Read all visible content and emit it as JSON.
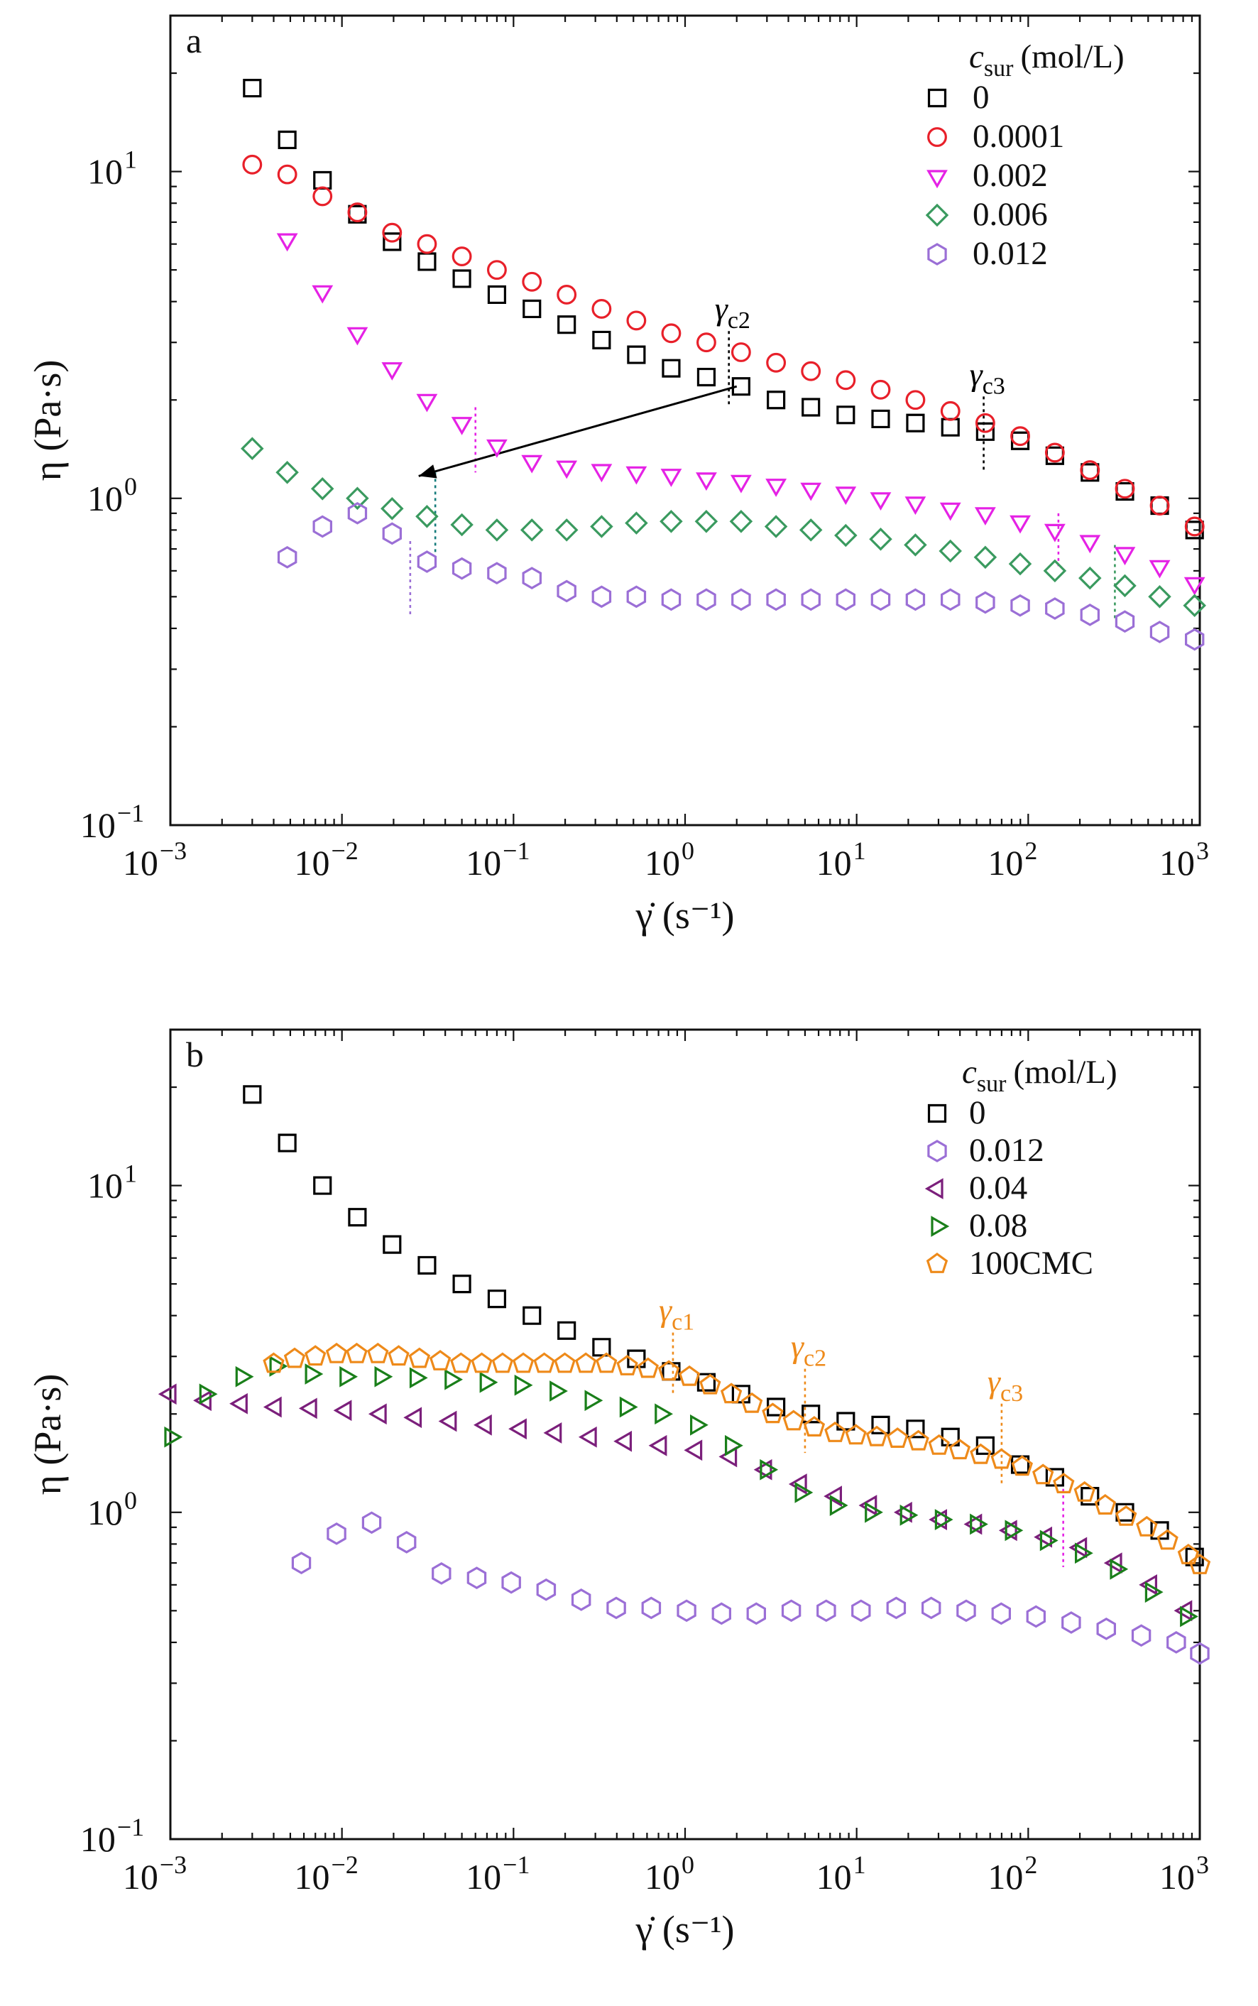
{
  "chart_data": [
    {
      "type": "scatter",
      "panel_label": "a",
      "xlabel": "γ̇ (s⁻¹)",
      "ylabel": "η (Pa·s)",
      "xscale": "log",
      "yscale": "log",
      "xlim": [
        0.001,
        1000
      ],
      "ylim": [
        0.1,
        30
      ],
      "legend_title": "c_sur (mol/L)",
      "legend_title_main": "c",
      "legend_title_sub": "sur",
      "legend_title_rest": "(mol/L)",
      "legend_position": "top-right",
      "x": [
        0.003,
        0.0048,
        0.0077,
        0.0123,
        0.0196,
        0.0313,
        0.05,
        0.08,
        0.128,
        0.204,
        0.326,
        0.52,
        0.83,
        1.33,
        2.12,
        3.39,
        5.41,
        8.64,
        13.8,
        22.0,
        35.2,
        56.2,
        89.8,
        143,
        229,
        366,
        584,
        933
      ],
      "series": [
        {
          "name": "0",
          "marker": "square",
          "color": "#000000",
          "values": [
            18.0,
            12.5,
            9.4,
            7.4,
            6.1,
            5.3,
            4.7,
            4.2,
            3.8,
            3.4,
            3.05,
            2.75,
            2.5,
            2.35,
            2.2,
            2.0,
            1.9,
            1.8,
            1.75,
            1.7,
            1.65,
            1.6,
            1.5,
            1.35,
            1.2,
            1.05,
            0.95,
            0.8
          ]
        },
        {
          "name": "0.0001",
          "marker": "circle",
          "color": "#e8202a",
          "values": [
            10.5,
            9.8,
            8.4,
            7.5,
            6.5,
            6.0,
            5.5,
            5.0,
            4.6,
            4.2,
            3.8,
            3.5,
            3.2,
            3.0,
            2.8,
            2.6,
            2.45,
            2.3,
            2.15,
            2.0,
            1.85,
            1.7,
            1.55,
            1.38,
            1.22,
            1.07,
            0.95,
            0.82
          ]
        },
        {
          "name": "0.002",
          "marker": "triangle-down",
          "color": "#e522e5",
          "values": [
            null,
            6.2,
            4.3,
            3.2,
            2.5,
            2.0,
            1.7,
            1.45,
            1.3,
            1.25,
            1.22,
            1.2,
            1.18,
            1.15,
            1.13,
            1.1,
            1.07,
            1.04,
            1.0,
            0.97,
            0.93,
            0.9,
            0.85,
            0.8,
            0.74,
            0.68,
            0.62,
            0.55
          ]
        },
        {
          "name": "0.006",
          "marker": "diamond",
          "color": "#3a9a5f",
          "values": [
            1.42,
            1.2,
            1.07,
            1.0,
            0.93,
            0.88,
            0.83,
            0.8,
            0.8,
            0.8,
            0.82,
            0.84,
            0.85,
            0.85,
            0.85,
            0.82,
            0.8,
            0.77,
            0.75,
            0.72,
            0.69,
            0.66,
            0.63,
            0.6,
            0.57,
            0.54,
            0.5,
            0.47
          ]
        },
        {
          "name": "0.012",
          "marker": "hexagon",
          "color": "#9b6fd6",
          "values": [
            null,
            0.66,
            0.82,
            0.9,
            0.78,
            0.64,
            0.61,
            0.59,
            0.57,
            0.52,
            0.5,
            0.5,
            0.49,
            0.49,
            0.49,
            0.49,
            0.49,
            0.49,
            0.49,
            0.49,
            0.49,
            0.48,
            0.47,
            0.46,
            0.44,
            0.42,
            0.39,
            0.37
          ]
        }
      ],
      "annotations": [
        {
          "text": "γc2",
          "main": "γ",
          "sub": "c2",
          "x": 1.8,
          "line_top": 3.25,
          "line_bottom": 1.9,
          "color": "#000000"
        },
        {
          "text": "γc3",
          "main": "γ",
          "sub": "c3",
          "x": 55,
          "line_top": 2.05,
          "line_bottom": 1.2,
          "color": "#000000"
        }
      ],
      "arrow": {
        "from": [
          2.0,
          2.2
        ],
        "to": [
          0.028,
          1.17
        ],
        "color": "#000000"
      },
      "markers_v": [
        {
          "x": 0.06,
          "top": 1.9,
          "bottom": 1.2,
          "color": "#e522e5"
        },
        {
          "x": 0.035,
          "top": 1.2,
          "bottom": 0.68,
          "color": "#167c7c"
        },
        {
          "x": 0.025,
          "top": 0.74,
          "bottom": 0.44,
          "color": "#9b6fd6"
        },
        {
          "x": 150,
          "top": 0.9,
          "bottom": 0.62,
          "color": "#e522e5"
        },
        {
          "x": 320,
          "top": 0.72,
          "bottom": 0.42,
          "color": "#3a9a5f"
        }
      ]
    },
    {
      "type": "scatter",
      "panel_label": "b",
      "xlabel": "γ̇ (s⁻¹)",
      "ylabel": "η (Pa·s)",
      "xscale": "log",
      "yscale": "log",
      "xlim": [
        0.001,
        1000
      ],
      "ylim": [
        0.1,
        30
      ],
      "legend_title": "c_sur (mol/L)",
      "legend_title_main": "c",
      "legend_title_sub": "sur",
      "legend_title_rest": "(mol/L)",
      "legend_position": "top-right",
      "series": [
        {
          "name": "0",
          "marker": "square",
          "color": "#000000",
          "x": [
            0.003,
            0.0048,
            0.0077,
            0.0123,
            0.0196,
            0.0313,
            0.05,
            0.08,
            0.128,
            0.204,
            0.326,
            0.52,
            0.83,
            1.33,
            2.12,
            3.39,
            5.41,
            8.64,
            13.8,
            22.0,
            35.2,
            56.2,
            89.8,
            143,
            229,
            366,
            584,
            933
          ],
          "values": [
            19.0,
            13.5,
            10.0,
            8.0,
            6.6,
            5.7,
            5.0,
            4.5,
            4.0,
            3.6,
            3.2,
            2.95,
            2.7,
            2.5,
            2.3,
            2.1,
            2.0,
            1.9,
            1.85,
            1.8,
            1.7,
            1.6,
            1.4,
            1.28,
            1.12,
            1.0,
            0.88,
            0.73
          ]
        },
        {
          "name": "0.012",
          "marker": "hexagon",
          "color": "#9b6fd6",
          "x": [
            0.0058,
            0.0093,
            0.0149,
            0.0238,
            0.038,
            0.061,
            0.097,
            0.155,
            0.248,
            0.397,
            0.635,
            1.02,
            1.63,
            2.6,
            4.16,
            6.65,
            10.6,
            17.0,
            27.2,
            43.5,
            69.6,
            111,
            178,
            285,
            456,
            729,
            1000
          ],
          "values": [
            0.7,
            0.86,
            0.93,
            0.81,
            0.65,
            0.63,
            0.61,
            0.58,
            0.54,
            0.51,
            0.51,
            0.5,
            0.49,
            0.49,
            0.5,
            0.5,
            0.5,
            0.51,
            0.51,
            0.5,
            0.49,
            0.48,
            0.46,
            0.44,
            0.42,
            0.4,
            0.37
          ]
        },
        {
          "name": "0.04",
          "marker": "triangle-left",
          "color": "#7b1f7b",
          "x": [
            0.001,
            0.0016,
            0.0026,
            0.0041,
            0.0066,
            0.0105,
            0.0168,
            0.0269,
            0.043,
            0.0689,
            0.11,
            0.176,
            0.282,
            0.451,
            0.722,
            1.16,
            1.85,
            2.96,
            4.73,
            7.57,
            12.1,
            19.4,
            31.0,
            49.6,
            79.4,
            127,
            203,
            325,
            520,
            832
          ],
          "values": [
            2.3,
            2.2,
            2.15,
            2.1,
            2.08,
            2.05,
            2.0,
            1.95,
            1.9,
            1.85,
            1.8,
            1.75,
            1.7,
            1.65,
            1.6,
            1.55,
            1.48,
            1.35,
            1.22,
            1.12,
            1.05,
            1.0,
            0.95,
            0.92,
            0.88,
            0.84,
            0.78,
            0.7,
            0.6,
            0.5
          ]
        },
        {
          "name": "0.08",
          "marker": "triangle-right",
          "color": "#1a7f1a",
          "x": [
            0.001,
            0.0016,
            0.0026,
            0.0041,
            0.0066,
            0.0105,
            0.0168,
            0.0269,
            0.043,
            0.0689,
            0.11,
            0.176,
            0.282,
            0.451,
            0.722,
            1.16,
            1.85,
            2.96,
            4.73,
            7.57,
            12.1,
            19.4,
            31.0,
            49.6,
            79.4,
            127,
            203,
            325,
            520,
            832
          ],
          "values": [
            1.7,
            2.3,
            2.6,
            2.8,
            2.65,
            2.6,
            2.6,
            2.58,
            2.55,
            2.5,
            2.45,
            2.35,
            2.2,
            2.1,
            2.0,
            1.85,
            1.6,
            1.35,
            1.15,
            1.05,
            1.0,
            0.98,
            0.95,
            0.92,
            0.88,
            0.82,
            0.75,
            0.67,
            0.57,
            0.48
          ]
        },
        {
          "name": "100CMC",
          "marker": "pentagon",
          "color": "#ee8a1a",
          "x": [
            0.004,
            0.0053,
            0.007,
            0.0093,
            0.0122,
            0.0162,
            0.0214,
            0.0283,
            0.0374,
            0.0494,
            0.0653,
            0.0863,
            0.114,
            0.151,
            0.199,
            0.264,
            0.348,
            0.46,
            0.608,
            0.804,
            1.06,
            1.4,
            1.86,
            2.45,
            3.24,
            4.29,
            5.66,
            7.49,
            9.9,
            13.1,
            17.3,
            22.9,
            30.2,
            39.9,
            52.8,
            69.8,
            92.2,
            122,
            161,
            213,
            281,
            372,
            491,
            649,
            858,
            1000
          ],
          "values": [
            2.85,
            2.95,
            3.0,
            3.05,
            3.05,
            3.05,
            3.0,
            2.95,
            2.9,
            2.85,
            2.85,
            2.85,
            2.85,
            2.85,
            2.85,
            2.85,
            2.85,
            2.8,
            2.75,
            2.7,
            2.6,
            2.45,
            2.3,
            2.15,
            2.0,
            1.9,
            1.82,
            1.75,
            1.72,
            1.7,
            1.68,
            1.65,
            1.6,
            1.55,
            1.5,
            1.45,
            1.38,
            1.3,
            1.22,
            1.15,
            1.05,
            0.97,
            0.9,
            0.82,
            0.74,
            0.69
          ]
        }
      ],
      "annotations": [
        {
          "text": "γc1",
          "main": "γ",
          "sub": "c1",
          "x": 0.85,
          "line_top": 3.55,
          "line_bottom": 2.3,
          "color": "#ee8a1a"
        },
        {
          "text": "γc2",
          "main": "γ",
          "sub": "c2",
          "x": 5.0,
          "line_top": 2.75,
          "line_bottom": 1.52,
          "color": "#ee8a1a"
        },
        {
          "text": "γc3",
          "main": "γ",
          "sub": "c3",
          "x": 70,
          "line_top": 2.15,
          "line_bottom": 1.2,
          "color": "#ee8a1a"
        }
      ],
      "markers_v": [
        {
          "x": 160,
          "top": 1.18,
          "bottom": 0.68,
          "color": "#e522e5"
        }
      ]
    }
  ]
}
